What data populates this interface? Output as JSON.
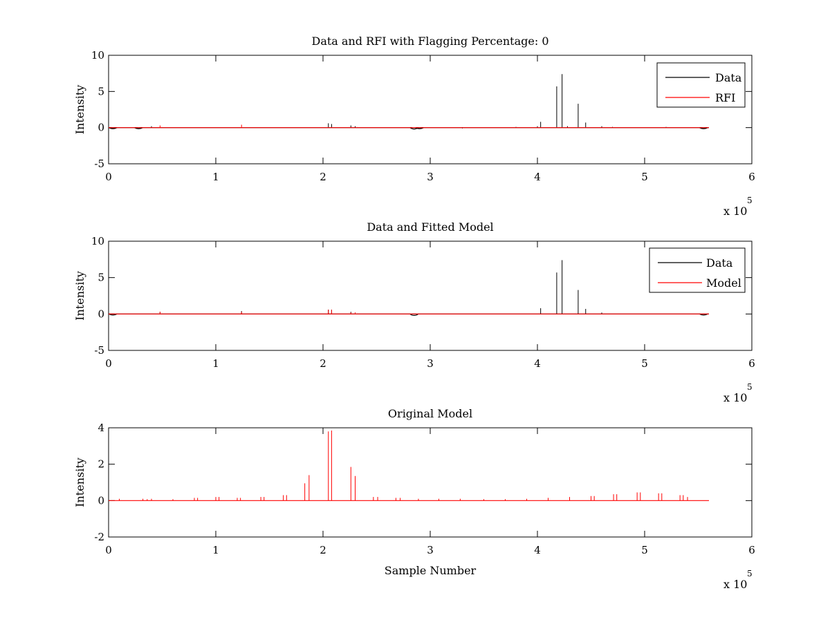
{
  "chart_data": [
    {
      "type": "line",
      "title": "Data and RFI with Flagging Percentage: 0",
      "xlabel": "",
      "ylabel": "Intensity",
      "xlim": [
        0,
        600000
      ],
      "ylim": [
        -5,
        10
      ],
      "xticks": [
        0,
        1,
        2,
        3,
        4,
        5,
        6
      ],
      "yticks": [
        -5,
        0,
        5,
        10
      ],
      "x_multiplier": "x 10",
      "x_multiplier_exp": "5",
      "legend": {
        "position": "top-right",
        "entries": [
          "Data",
          "RFI"
        ]
      },
      "series": [
        {
          "name": "Data",
          "color": "#000000",
          "baseline": 0,
          "x_end": 560000,
          "spikes": [
            [
              40000,
              0.2
            ],
            [
              205000,
              0.6
            ],
            [
              208000,
              0.5
            ],
            [
              226000,
              0.3
            ],
            [
              230000,
              0.2
            ],
            [
              330000,
              -0.1
            ],
            [
              380000,
              0.1
            ],
            [
              400000,
              0.2
            ],
            [
              403000,
              0.8
            ],
            [
              418000,
              5.7
            ],
            [
              423000,
              7.4
            ],
            [
              428000,
              0.2
            ],
            [
              438000,
              3.3
            ],
            [
              445000,
              0.7
            ],
            [
              460000,
              0.2
            ],
            [
              470000,
              0.1
            ],
            [
              520000,
              0.1
            ]
          ],
          "dips": [
            [
              4000,
              -0.2
            ],
            [
              28000,
              -0.2
            ],
            [
              285000,
              -0.3
            ],
            [
              290000,
              -0.2
            ],
            [
              555000,
              -0.2
            ]
          ]
        },
        {
          "name": "RFI",
          "color": "#ff0000",
          "baseline": 0,
          "x_end": 560000,
          "spikes": [
            [
              48000,
              0.3
            ],
            [
              124000,
              0.4
            ]
          ],
          "dips": []
        }
      ]
    },
    {
      "type": "line",
      "title": "Data and Fitted Model",
      "xlabel": "",
      "ylabel": "Intensity",
      "xlim": [
        0,
        600000
      ],
      "ylim": [
        -5,
        10
      ],
      "xticks": [
        0,
        1,
        2,
        3,
        4,
        5,
        6
      ],
      "yticks": [
        -5,
        0,
        5,
        10
      ],
      "x_multiplier": "x 10",
      "x_multiplier_exp": "5",
      "legend": {
        "position": "top-right",
        "entries": [
          "Data",
          "Model"
        ]
      },
      "series": [
        {
          "name": "Data",
          "color": "#000000",
          "baseline": 0,
          "x_end": 560000,
          "spikes": [
            [
              48000,
              0.3
            ],
            [
              124000,
              0.4
            ],
            [
              205000,
              0.6
            ],
            [
              208000,
              0.6
            ],
            [
              226000,
              0.3
            ],
            [
              230000,
              0.2
            ],
            [
              403000,
              0.8
            ],
            [
              418000,
              5.7
            ],
            [
              423000,
              7.4
            ],
            [
              438000,
              3.3
            ],
            [
              445000,
              0.7
            ],
            [
              460000,
              0.2
            ]
          ],
          "dips": [
            [
              4000,
              -0.2
            ],
            [
              285000,
              -0.3
            ],
            [
              555000,
              -0.2
            ]
          ]
        },
        {
          "name": "Model",
          "color": "#ff0000",
          "baseline": 0,
          "x_end": 560000,
          "spikes": [
            [
              48000,
              0.3
            ],
            [
              124000,
              0.3
            ],
            [
              205000,
              0.6
            ],
            [
              208000,
              0.6
            ],
            [
              226000,
              0.2
            ],
            [
              230000,
              0.2
            ]
          ],
          "dips": []
        }
      ]
    },
    {
      "type": "line",
      "title": "Original Model",
      "xlabel": "Sample Number",
      "ylabel": "Intensity",
      "xlim": [
        0,
        600000
      ],
      "ylim": [
        -2,
        4
      ],
      "xticks": [
        0,
        1,
        2,
        3,
        4,
        5,
        6
      ],
      "yticks": [
        -2,
        0,
        2,
        4
      ],
      "x_multiplier": "x 10",
      "x_multiplier_exp": "5",
      "legend": null,
      "series": [
        {
          "name": "",
          "color": "#ff0000",
          "baseline": 0,
          "x_end": 560000,
          "spikes": [
            [
              10000,
              0.1
            ],
            [
              32000,
              0.1
            ],
            [
              36000,
              0.08
            ],
            [
              40000,
              0.1
            ],
            [
              60000,
              0.08
            ],
            [
              80000,
              0.15
            ],
            [
              83000,
              0.15
            ],
            [
              100000,
              0.2
            ],
            [
              103000,
              0.2
            ],
            [
              120000,
              0.15
            ],
            [
              123000,
              0.15
            ],
            [
              142000,
              0.2
            ],
            [
              145000,
              0.2
            ],
            [
              163000,
              0.3
            ],
            [
              166000,
              0.3
            ],
            [
              183000,
              0.95
            ],
            [
              187000,
              1.4
            ],
            [
              205000,
              3.8
            ],
            [
              208000,
              3.85
            ],
            [
              226000,
              1.85
            ],
            [
              230000,
              1.35
            ],
            [
              247000,
              0.2
            ],
            [
              251000,
              0.2
            ],
            [
              268000,
              0.15
            ],
            [
              272000,
              0.15
            ],
            [
              289000,
              0.1
            ],
            [
              308000,
              0.1
            ],
            [
              328000,
              0.1
            ],
            [
              350000,
              0.08
            ],
            [
              370000,
              0.08
            ],
            [
              390000,
              0.1
            ],
            [
              410000,
              0.15
            ],
            [
              430000,
              0.2
            ],
            [
              450000,
              0.25
            ],
            [
              453000,
              0.25
            ],
            [
              471000,
              0.35
            ],
            [
              474000,
              0.35
            ],
            [
              493000,
              0.45
            ],
            [
              496000,
              0.45
            ],
            [
              513000,
              0.4
            ],
            [
              516000,
              0.4
            ],
            [
              533000,
              0.3
            ],
            [
              536000,
              0.3
            ],
            [
              540000,
              0.2
            ]
          ],
          "dips": []
        }
      ]
    }
  ]
}
